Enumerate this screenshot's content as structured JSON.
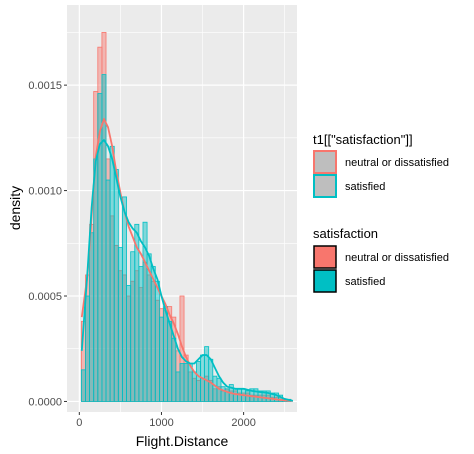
{
  "chart_data": {
    "type": "histogram_density",
    "xlabel": "Flight.Distance",
    "ylabel": "density",
    "xlim": [
      -150,
      2650
    ],
    "ylim": [
      -5e-05,
      0.00188
    ],
    "x_ticks": [
      0,
      1000,
      2000
    ],
    "x_tick_labels": [
      "0",
      "1000",
      "2000"
    ],
    "y_ticks": [
      0,
      0.0005,
      0.001,
      0.0015
    ],
    "y_tick_labels": [
      "0.0000",
      "0.0005",
      "0.0010",
      "0.0015"
    ],
    "grid": true,
    "legend_position": "right",
    "bin_width": 50,
    "bins_x": [
      50,
      100,
      150,
      200,
      250,
      300,
      350,
      400,
      450,
      500,
      550,
      600,
      650,
      700,
      750,
      800,
      850,
      900,
      950,
      1000,
      1050,
      1100,
      1150,
      1200,
      1250,
      1300,
      1350,
      1400,
      1450,
      1500,
      1550,
      1600,
      1650,
      1700,
      1750,
      1800,
      1850,
      1900,
      1950,
      2000,
      2050,
      2100,
      2150,
      2200,
      2250,
      2300,
      2350,
      2400,
      2450,
      2500,
      2550
    ],
    "series": [
      {
        "name": "neutral or dissatisfied",
        "color": "#F8766D",
        "hist": [
          0.00038,
          0.0006,
          0.00084,
          0.00147,
          0.00168,
          0.00175,
          0.00115,
          0.00088,
          0.00074,
          0.00062,
          0.0006,
          0.0005,
          0.00057,
          0.00062,
          0.00054,
          0.00066,
          0.0006,
          0.00057,
          0.00048,
          0.00044,
          0.00043,
          0.00045,
          0.0004,
          0.00024,
          0.0005,
          0.00022,
          0.00014,
          0.00011,
          0.0001,
          0.00011,
          0.00012,
          0.0001,
          6e-05,
          7e-05,
          5e-05,
          6e-05,
          5e-05,
          5e-05,
          4e-05,
          4e-05,
          4e-05,
          3e-05,
          3e-05,
          3e-05,
          3e-05,
          3e-05,
          2e-05,
          2e-05,
          2e-05,
          1e-05,
          1e-05
        ],
        "density": {
          "x": [
            30,
            100,
            150,
            200,
            250,
            300,
            350,
            400,
            450,
            500,
            550,
            600,
            650,
            700,
            750,
            800,
            850,
            900,
            950,
            1000,
            1050,
            1100,
            1150,
            1200,
            1250,
            1300,
            1350,
            1400,
            1450,
            1500,
            1550,
            1600,
            1650,
            1700,
            1800,
            1900,
            2000,
            2100,
            2200,
            2300,
            2400,
            2500,
            2600
          ],
          "y": [
            0.0004,
            0.0006,
            0.00088,
            0.00116,
            0.00128,
            0.00134,
            0.0013,
            0.00121,
            0.00109,
            0.00099,
            0.0009,
            0.00083,
            0.00078,
            0.00073,
            0.0007,
            0.00066,
            0.00062,
            0.00058,
            0.00054,
            0.0005,
            0.00046,
            0.00041,
            0.00037,
            0.00032,
            0.00026,
            0.00021,
            0.00017,
            0.00014,
            0.00012,
            0.00011,
            0.0001,
            9e-05,
            7.5e-05,
            6e-05,
            4.5e-05,
            3.5e-05,
            3e-05,
            2.5e-05,
            2e-05,
            1.5e-05,
            1e-05,
            5e-06,
            2e-06
          ]
        }
      },
      {
        "name": "satisfied",
        "color": "#00BFC4",
        "hist": [
          0.00015,
          0.0005,
          0.0008,
          0.00115,
          0.00146,
          0.00155,
          0.00105,
          0.00121,
          0.0011,
          0.00073,
          0.00097,
          0.00055,
          0.00071,
          0.00084,
          0.00064,
          0.00085,
          0.0007,
          0.00064,
          0.00057,
          0.0004,
          0.00045,
          0.00038,
          0.0003,
          0.00014,
          0.00018,
          0.00018,
          0.00018,
          0.00014,
          0.00019,
          0.00022,
          0.00026,
          0.0002,
          0.00012,
          0.00011,
          7e-05,
          6e-05,
          8e-05,
          6e-05,
          6e-05,
          6e-05,
          5e-05,
          6e-05,
          6e-05,
          5e-05,
          5e-05,
          5e-05,
          4e-05,
          4e-05,
          3e-05,
          1e-05,
          1e-05
        ],
        "density": {
          "x": [
            30,
            100,
            150,
            200,
            250,
            300,
            350,
            400,
            450,
            500,
            550,
            600,
            650,
            700,
            750,
            800,
            850,
            900,
            950,
            1000,
            1050,
            1100,
            1150,
            1200,
            1250,
            1300,
            1350,
            1400,
            1450,
            1500,
            1550,
            1600,
            1650,
            1700,
            1750,
            1800,
            1900,
            2000,
            2100,
            2200,
            2300,
            2400,
            2500,
            2600
          ],
          "y": [
            0.00024,
            0.00062,
            0.00092,
            0.00114,
            0.00122,
            0.00124,
            0.00121,
            0.00115,
            0.00106,
            0.00097,
            0.0009,
            0.00085,
            0.00082,
            0.0008,
            0.00076,
            0.00073,
            0.00069,
            0.00063,
            0.00058,
            0.0005,
            0.00043,
            0.00037,
            0.00031,
            0.00025,
            0.00021,
            0.00019,
            0.00018,
            0.00018,
            0.0002,
            0.00022,
            0.00022,
            0.0002,
            0.00016,
            0.00012,
            9e-05,
            7e-05,
            6e-05,
            6e-05,
            5e-05,
            4.5e-05,
            4e-05,
            3e-05,
            1.2e-05,
            3e-06
          ]
        }
      }
    ],
    "legends": [
      {
        "title": "t1[[\"satisfaction\"]]",
        "entries": [
          "neutral or dissatisfied",
          "satisfied"
        ],
        "swatch_fill": "#BEBEBE"
      },
      {
        "title": "satisfaction",
        "entries": [
          "neutral or dissatisfied",
          "satisfied"
        ]
      }
    ]
  }
}
